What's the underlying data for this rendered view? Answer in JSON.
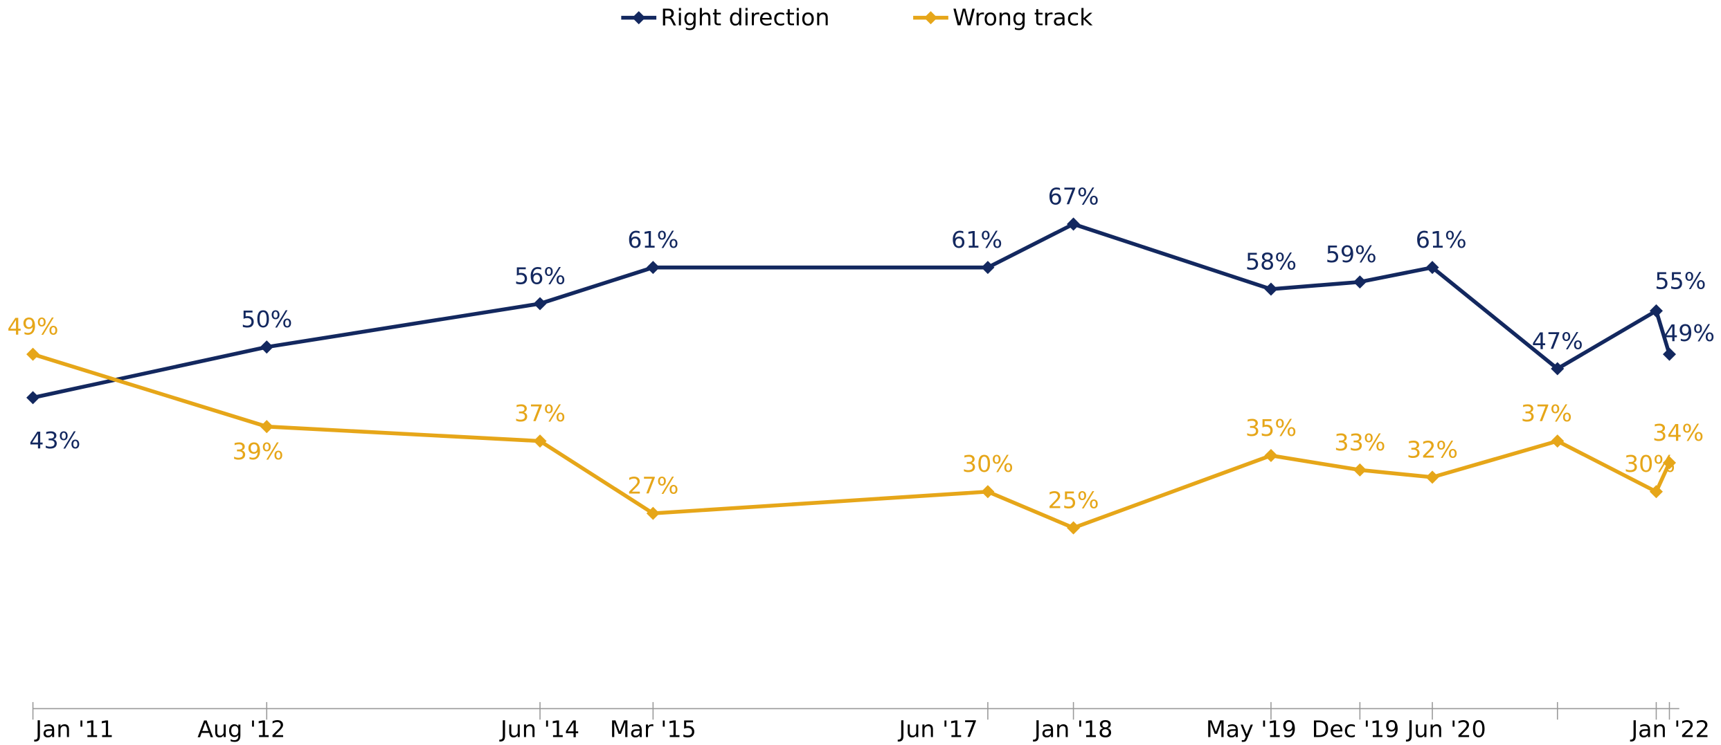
{
  "chart_data": {
    "type": "line",
    "categories": [
      "Jan '11",
      "Aug '12",
      "Jun '14",
      "Mar '15",
      "Jun '17",
      "Jan '18",
      "May '19",
      "Dec '19",
      "Jun '20",
      null,
      null,
      "Jan '22"
    ],
    "series": [
      {
        "name": "Right direction",
        "color": "#13285f",
        "values": [
          43,
          50,
          56,
          61,
          61,
          67,
          58,
          59,
          61,
          47,
          55,
          49
        ],
        "value_labels": [
          "43%",
          "50%",
          "56%",
          "61%",
          "61%",
          "67%",
          "58%",
          "59%",
          "61%",
          "47%",
          "55%",
          "49%"
        ]
      },
      {
        "name": "Wrong track",
        "color": "#e6a619",
        "values": [
          49,
          39,
          37,
          27,
          30,
          25,
          35,
          33,
          32,
          37,
          30,
          34
        ],
        "value_labels": [
          "49%",
          "39%",
          "37%",
          "27%",
          "30%",
          "25%",
          "35%",
          "33%",
          "32%",
          "37%",
          "30%",
          "34%"
        ]
      }
    ],
    "ylim": [
      0,
      90
    ],
    "legend": "top"
  }
}
